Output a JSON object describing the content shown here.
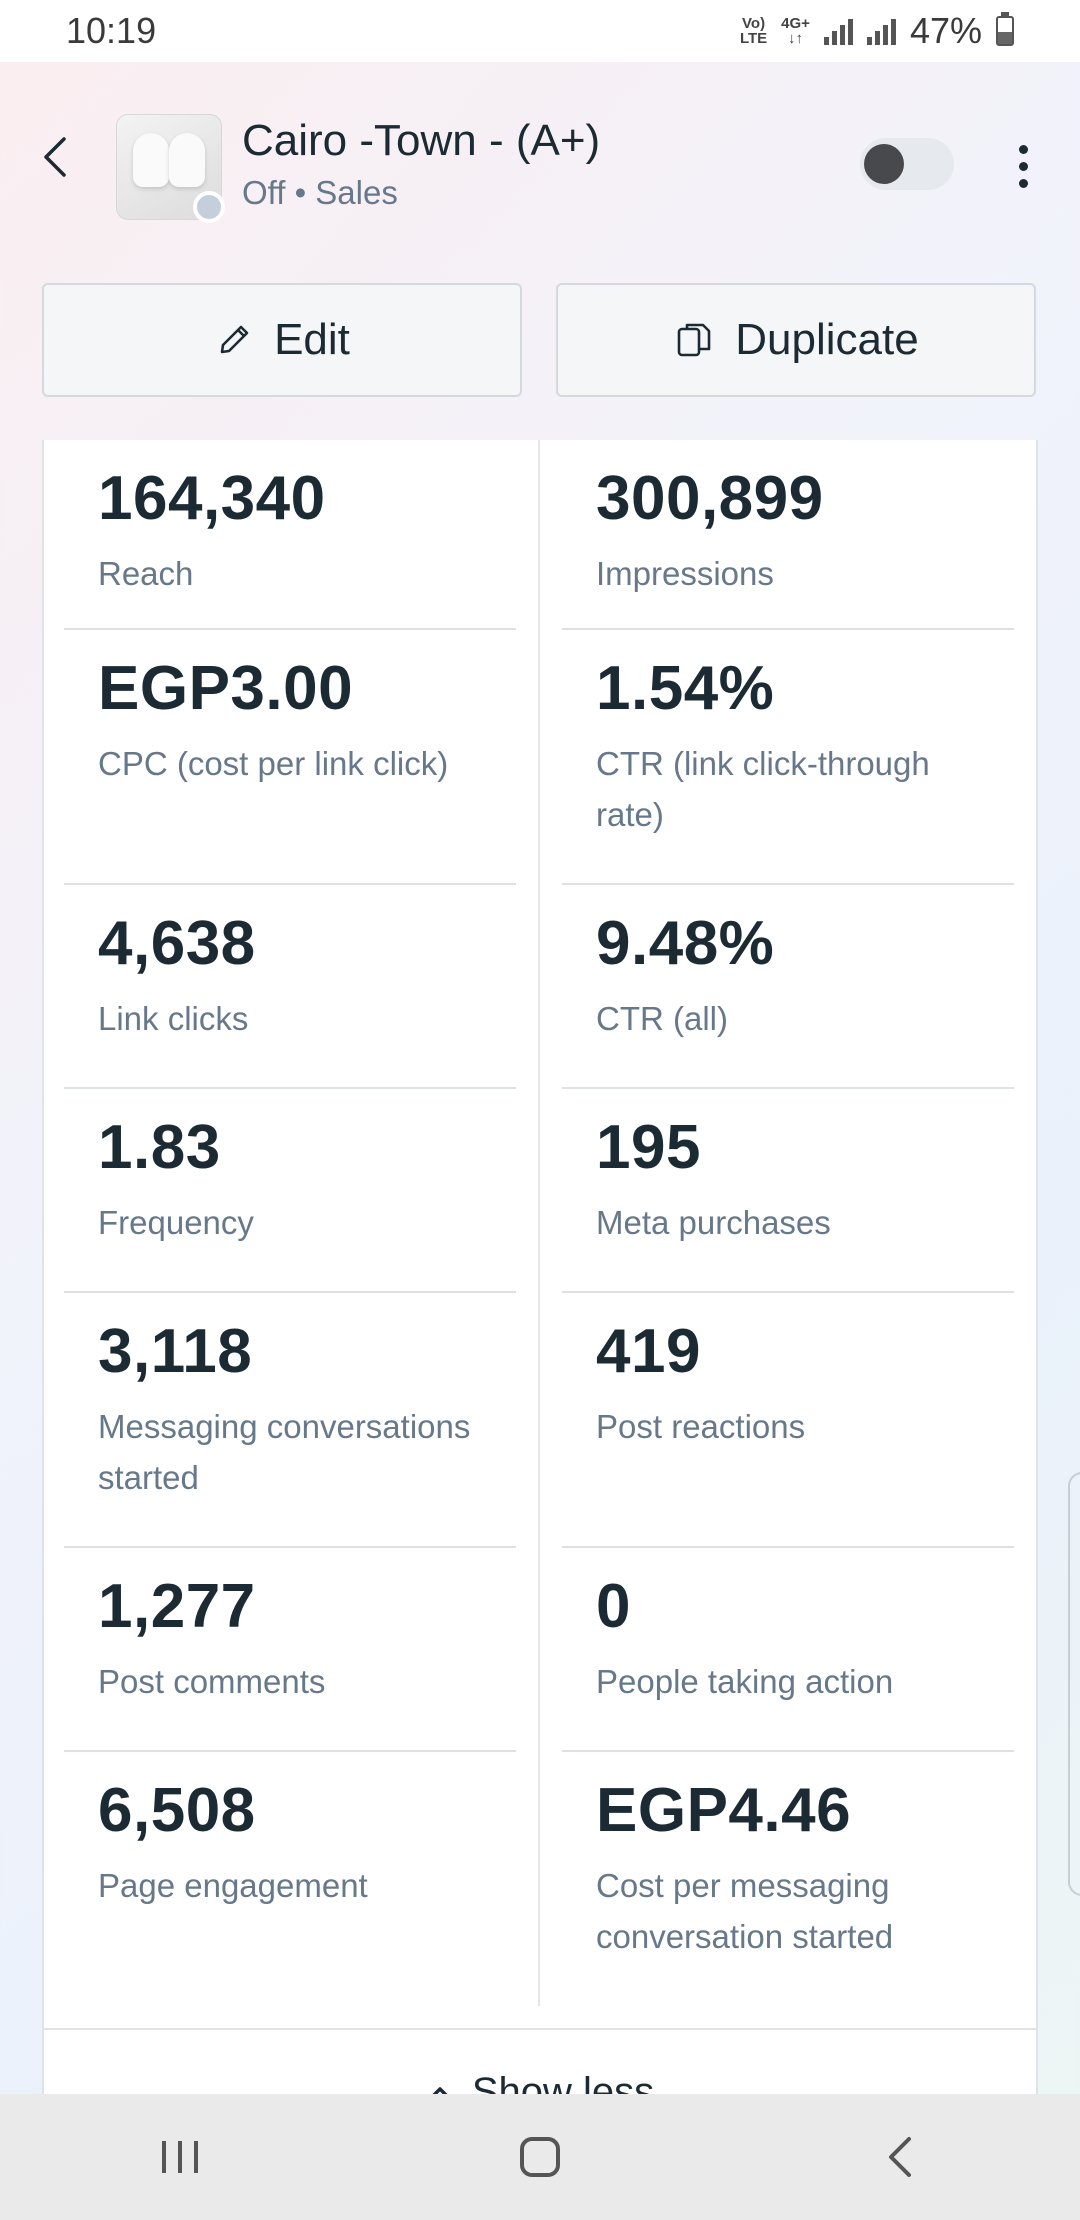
{
  "status_bar": {
    "time": "10:19",
    "net_tag_1a": "Vo)",
    "net_tag_1b": "LTE",
    "net_tag_2a": "4G+",
    "net_tag_2b": "↓↑",
    "battery": "47%"
  },
  "header": {
    "title": "Cairo -Town - (A+)",
    "subtitle": "Off • Sales",
    "toggle_on": false
  },
  "actions": {
    "edit_label": "Edit",
    "duplicate_label": "Duplicate"
  },
  "metrics": [
    {
      "value": "164,340",
      "label": "Reach"
    },
    {
      "value": "300,899",
      "label": "Impressions"
    },
    {
      "value": "EGP3.00",
      "label": "CPC (cost per link click)"
    },
    {
      "value": "1.54%",
      "label": "CTR (link click-through rate)"
    },
    {
      "value": "4,638",
      "label": "Link clicks"
    },
    {
      "value": "9.48%",
      "label": "CTR (all)"
    },
    {
      "value": "1.83",
      "label": "Frequency"
    },
    {
      "value": "195",
      "label": "Meta purchases"
    },
    {
      "value": "3,118",
      "label": "Messaging conversations started"
    },
    {
      "value": "419",
      "label": "Post reactions"
    },
    {
      "value": "1,277",
      "label": "Post comments"
    },
    {
      "value": "0",
      "label": "People taking action"
    },
    {
      "value": "6,508",
      "label": "Page engagement"
    },
    {
      "value": "EGP4.46",
      "label": "Cost per messaging conversation started"
    }
  ],
  "footer": {
    "show_less_label": "Show less"
  },
  "icons": {
    "back": "chevron-left-icon",
    "more": "more-vertical-icon",
    "edit": "pencil-icon",
    "duplicate": "copy-icon",
    "show_less": "chevron-up-icon"
  }
}
